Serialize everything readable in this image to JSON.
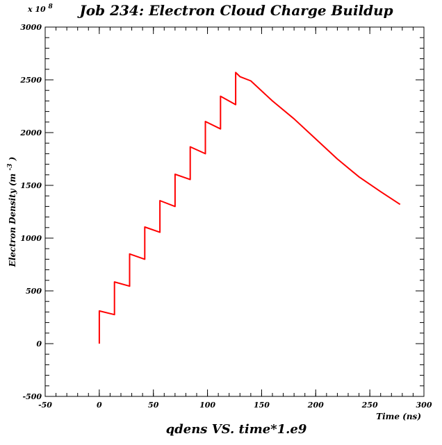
{
  "chart_data": {
    "type": "line",
    "title": "Job 234: Electron Cloud Charge Buildup",
    "subtitle": "qdens VS. time*1.e9",
    "xlabel": "Time (ns)",
    "ylabel_main": "Electron Density (m",
    "ylabel_sup": "-3",
    "ylabel_end": ")",
    "multiplier_text": "x 10",
    "multiplier_exp": "8",
    "xlim": [
      -50,
      300
    ],
    "ylim": [
      -500,
      3000
    ],
    "x_ticks": [
      -50,
      0,
      50,
      100,
      150,
      200,
      250,
      300
    ],
    "y_ticks": [
      -500,
      0,
      500,
      1000,
      1500,
      2000,
      2500,
      3000
    ],
    "grid": false,
    "series_color": "#ff0000",
    "series": [
      {
        "x": [
          0,
          0,
          14,
          14,
          28,
          28,
          42,
          42,
          56,
          56,
          70,
          70,
          84,
          84,
          98,
          98,
          112,
          112,
          126,
          126,
          130,
          140,
          160,
          180,
          200,
          220,
          240,
          260,
          278
        ],
        "y": [
          0,
          310,
          275,
          585,
          545,
          850,
          800,
          1105,
          1055,
          1355,
          1300,
          1605,
          1555,
          1865,
          1800,
          2105,
          2035,
          2345,
          2265,
          2570,
          2530,
          2490,
          2300,
          2130,
          1940,
          1750,
          1580,
          1440,
          1320
        ]
      }
    ]
  }
}
